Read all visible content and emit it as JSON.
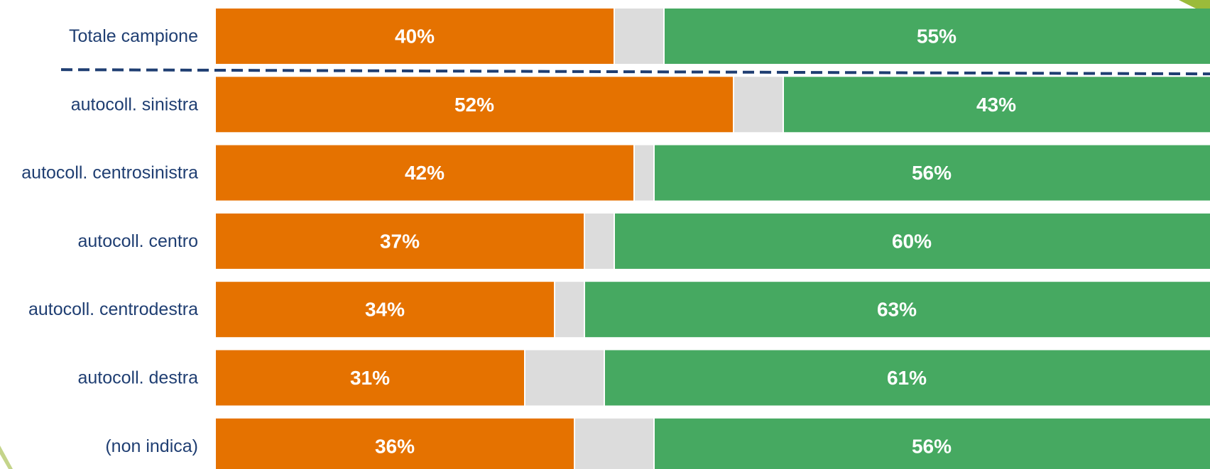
{
  "chart_data": {
    "type": "bar",
    "orientation": "horizontal",
    "stacked": true,
    "xlim": [
      0,
      100
    ],
    "grid": false,
    "legend": "none",
    "categories": [
      "Totale campione",
      "autocoll. sinistra",
      "autocoll. centrosinistra",
      "autocoll. centro",
      "autocoll. centrodestra",
      "autocoll. destra",
      "(non indica)"
    ],
    "series": [
      {
        "color": "#e57200",
        "values": [
          40,
          52,
          42,
          37,
          34,
          31,
          36
        ],
        "labels": [
          "40%",
          "52%",
          "42%",
          "37%",
          "34%",
          "31%",
          "36%"
        ]
      },
      {
        "color": "#dcdcdc",
        "values": [
          5,
          5,
          2,
          3,
          3,
          8,
          8
        ]
      },
      {
        "color": "#46a961",
        "values": [
          55,
          43,
          56,
          60,
          63,
          61,
          56
        ],
        "labels": [
          "55%",
          "43%",
          "56%",
          "60%",
          "63%",
          "61%",
          "56%"
        ]
      }
    ],
    "separator_after_category": 0,
    "colors": {
      "category_text": "#1f3e72",
      "separator": "#1f3e72",
      "value_text": "#ffffff"
    }
  }
}
